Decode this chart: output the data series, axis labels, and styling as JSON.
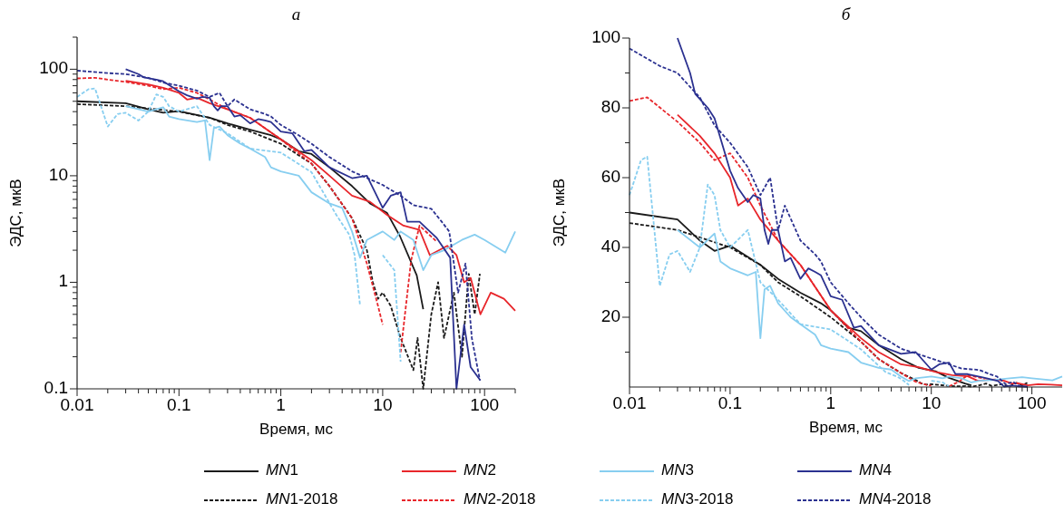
{
  "chart_data": [
    {
      "type": "line",
      "title": "а",
      "xlabel": "Время, мс",
      "ylabel": "ЭДС, мкВ",
      "log": "xy",
      "xlim": [
        0.01,
        200
      ],
      "ylim": [
        0.1,
        200
      ],
      "legend": "bottom",
      "grid": false,
      "xticks": [
        0.01,
        {
          "value": 0.02,
          "label": null
        },
        {
          "value": 0.03,
          "label": null
        },
        {
          "value": 0.04,
          "label": null
        },
        {
          "value": 0.05,
          "label": null
        },
        {
          "value": 0.06,
          "label": null
        },
        {
          "value": 0.07,
          "label": null
        },
        {
          "value": 0.08,
          "label": null
        },
        {
          "value": 0.09,
          "label": null
        },
        0.1,
        {
          "value": 0.2,
          "label": null
        },
        {
          "value": 0.3,
          "label": null
        },
        {
          "value": 0.4,
          "label": null
        },
        {
          "value": 0.5,
          "label": null
        },
        {
          "value": 0.6,
          "label": null
        },
        {
          "value": 0.7,
          "label": null
        },
        {
          "value": 0.8,
          "label": null
        },
        {
          "value": 0.9,
          "label": null
        },
        1,
        {
          "value": 2,
          "label": null
        },
        {
          "value": 3,
          "label": null
        },
        {
          "value": 4,
          "label": null
        },
        {
          "value": 5,
          "label": null
        },
        {
          "value": 6,
          "label": null
        },
        {
          "value": 7,
          "label": null
        },
        {
          "value": 8,
          "label": null
        },
        {
          "value": 9,
          "label": null
        },
        10,
        {
          "value": 20,
          "label": null
        },
        {
          "value": 30,
          "label": null
        },
        {
          "value": 40,
          "label": null
        },
        {
          "value": 50,
          "label": null
        },
        {
          "value": 60,
          "label": null
        },
        {
          "value": 70,
          "label": null
        },
        {
          "value": 80,
          "label": null
        },
        {
          "value": 90,
          "label": null
        },
        100,
        {
          "value": 200,
          "label": null
        }
      ],
      "yticks": [
        0.1,
        {
          "value": 0.2,
          "label": null
        },
        {
          "value": 0.3,
          "label": null
        },
        {
          "value": 0.4,
          "label": null
        },
        {
          "value": 0.5,
          "label": null
        },
        {
          "value": 0.6,
          "label": null
        },
        {
          "value": 0.7,
          "label": null
        },
        {
          "value": 0.8,
          "label": null
        },
        {
          "value": 0.9,
          "label": null
        },
        1,
        {
          "value": 2,
          "label": null
        },
        {
          "value": 3,
          "label": null
        },
        {
          "value": 4,
          "label": null
        },
        {
          "value": 5,
          "label": null
        },
        {
          "value": 6,
          "label": null
        },
        {
          "value": 7,
          "label": null
        },
        {
          "value": 8,
          "label": null
        },
        {
          "value": 9,
          "label": null
        },
        10,
        {
          "value": 20,
          "label": null
        },
        {
          "value": 30,
          "label": null
        },
        {
          "value": 40,
          "label": null
        },
        {
          "value": 50,
          "label": null
        },
        {
          "value": 60,
          "label": null
        },
        {
          "value": 70,
          "label": null
        },
        {
          "value": 80,
          "label": null
        },
        {
          "value": 90,
          "label": null
        },
        100,
        {
          "value": 200,
          "label": null
        }
      ],
      "series": [
        {
          "name": "MN1",
          "color": "#1a1a1a",
          "line_style": "solid",
          "x": [
            0.01,
            0.03,
            0.05,
            0.07,
            0.1,
            0.2,
            0.3,
            0.5,
            0.8,
            1,
            1.5,
            2,
            3,
            5,
            7.5,
            11,
            14.8,
            21.6,
            25
          ],
          "values": [
            50,
            48,
            42,
            39,
            40.5,
            35,
            31,
            27,
            24,
            22,
            17,
            16,
            12,
            8,
            5.5,
            4.5,
            2.7,
            1.16,
            0.56
          ]
        },
        {
          "name": "MN1-2018",
          "color": "#1a1a1a",
          "line_style": "dashed",
          "x": [
            0.01,
            0.03,
            0.1,
            0.2,
            0.3,
            0.5,
            1,
            2,
            3,
            5,
            7,
            8,
            9,
            10,
            12,
            15,
            20,
            22,
            25,
            30,
            35,
            40,
            50,
            60,
            70,
            80,
            90
          ],
          "values": [
            47,
            45,
            40,
            35,
            30,
            26,
            20,
            13,
            8,
            4,
            2,
            1,
            0.7,
            0.8,
            0.6,
            0.3,
            0.15,
            0.3,
            0.1,
            0.5,
            1,
            0.3,
            0.8,
            0.2,
            1.2,
            0.5,
            1.2
          ]
        },
        {
          "name": "MN2",
          "color": "#e8262b",
          "line_style": "solid",
          "x": [
            0.03,
            0.05,
            0.07,
            0.1,
            0.12,
            0.15,
            0.2,
            0.3,
            0.5,
            1,
            2,
            3,
            5,
            7.5,
            11,
            16,
            23,
            29,
            43,
            53,
            63,
            73,
            91,
            115,
            155,
            200
          ],
          "values": [
            78,
            72,
            67,
            60,
            52,
            54,
            48,
            42,
            35,
            22,
            14,
            10,
            6.5,
            5.7,
            4.3,
            3.4,
            3.1,
            1.8,
            2.2,
            1.8,
            1,
            1.1,
            0.5,
            0.8,
            0.7,
            0.54
          ]
        },
        {
          "name": "MN2-2018",
          "color": "#e8262b",
          "line_style": "dashed",
          "x": [
            0.01,
            0.015,
            0.03,
            0.05,
            0.07,
            0.1,
            0.15,
            0.2,
            0.3,
            0.5,
            1,
            2,
            3,
            5,
            7,
            9,
            10,
            12,
            15,
            19,
            23,
            34
          ],
          "values": [
            82,
            83,
            76,
            70,
            65,
            67,
            60,
            52,
            42,
            35,
            22,
            13,
            8,
            4,
            1.5,
            0.6,
            0.4,
            null,
            0.22,
            1.6,
            3.4,
            2.4
          ]
        },
        {
          "name": "MN3",
          "color": "#87cef0",
          "line_style": "solid",
          "x": [
            0.03,
            0.05,
            0.07,
            0.08,
            0.1,
            0.15,
            0.18,
            0.2,
            0.22,
            0.25,
            0.3,
            0.4,
            0.5,
            0.7,
            0.8,
            1,
            1.5,
            2,
            3,
            4,
            5,
            6,
            7,
            10,
            13,
            15,
            20,
            25,
            30,
            40,
            60,
            80,
            100,
            160,
            200
          ],
          "values": [
            45,
            40,
            44,
            36,
            34,
            32,
            33,
            14,
            28,
            29,
            24,
            20,
            18,
            15,
            12,
            11,
            10,
            7,
            5.5,
            5,
            3,
            1.7,
            2.5,
            3,
            2.5,
            3,
            2.5,
            1.3,
            1.8,
            2,
            2.5,
            2.8,
            2.5,
            1.9,
            3
          ]
        },
        {
          "name": "MN3-2018",
          "color": "#87cef0",
          "line_style": "dashed",
          "x": [
            0.01,
            0.013,
            0.015,
            0.02,
            0.025,
            0.03,
            0.04,
            0.05,
            0.06,
            0.07,
            0.08,
            0.1,
            0.15,
            0.2,
            0.3,
            0.5,
            1,
            2,
            3.5,
            4.7,
            5.3,
            6,
            8,
            10,
            13,
            15
          ],
          "values": [
            55,
            65,
            66,
            29,
            38,
            39,
            33,
            40,
            58,
            55,
            45,
            40,
            45,
            30,
            25,
            18,
            16.5,
            10.8,
            4.3,
            2.8,
            1.8,
            0.6,
            null,
            1.8,
            1.3,
            0.18
          ]
        },
        {
          "name": "MN4",
          "color": "#2b3190",
          "line_style": "solid",
          "x": [
            0.03,
            0.04,
            0.045,
            0.06,
            0.07,
            0.1,
            0.12,
            0.15,
            0.17,
            0.2,
            0.22,
            0.24,
            0.26,
            0.3,
            0.35,
            0.4,
            0.5,
            0.6,
            0.7,
            0.8,
            1,
            1.3,
            1.7,
            2,
            3,
            5,
            7,
            10,
            12,
            15,
            17.4,
            23,
            34,
            46,
            53,
            63,
            73,
            91
          ],
          "values": [
            100,
            90,
            84,
            80,
            77,
            62,
            57,
            53,
            55,
            54,
            45,
            41,
            45,
            45,
            36,
            37,
            31,
            34,
            33,
            32,
            26,
            25,
            17,
            17.5,
            12,
            9.5,
            10,
            5,
            6.5,
            7,
            3.7,
            3.7,
            2.6,
            1.7,
            0.1,
            0.4,
            0.16,
            0.12
          ]
        },
        {
          "name": "MN4-2018",
          "color": "#2b3190",
          "line_style": "dashed",
          "x": [
            0.01,
            0.02,
            0.03,
            0.04,
            0.05,
            0.07,
            0.1,
            0.15,
            0.2,
            0.25,
            0.3,
            0.35,
            0.5,
            0.7,
            0.8,
            1,
            1.5,
            2,
            3,
            5,
            10,
            15,
            20,
            30,
            38,
            45,
            55,
            65,
            75,
            90
          ],
          "values": [
            97,
            92,
            90,
            86,
            83,
            75,
            70,
            63,
            55,
            60,
            45,
            52,
            42,
            38,
            36,
            30,
            24,
            20,
            15,
            11,
            8.2,
            6.5,
            5.3,
            4.9,
            3.7,
            3,
            0.8,
            1.5,
            0.3,
            0.12
          ]
        }
      ]
    },
    {
      "type": "line",
      "title": "б",
      "xlabel": "Время, мс",
      "ylabel": "ЭДС, мкВ",
      "log": "x",
      "xlim": [
        0.01,
        200
      ],
      "ylim": [
        0,
        100
      ],
      "grid": false,
      "xticks": [
        0.01,
        {
          "value": 0.02,
          "label": null
        },
        {
          "value": 0.03,
          "label": null
        },
        {
          "value": 0.04,
          "label": null
        },
        {
          "value": 0.05,
          "label": null
        },
        {
          "value": 0.06,
          "label": null
        },
        {
          "value": 0.07,
          "label": null
        },
        {
          "value": 0.08,
          "label": null
        },
        {
          "value": 0.09,
          "label": null
        },
        0.1,
        {
          "value": 0.2,
          "label": null
        },
        {
          "value": 0.3,
          "label": null
        },
        {
          "value": 0.4,
          "label": null
        },
        {
          "value": 0.5,
          "label": null
        },
        {
          "value": 0.6,
          "label": null
        },
        {
          "value": 0.7,
          "label": null
        },
        {
          "value": 0.8,
          "label": null
        },
        {
          "value": 0.9,
          "label": null
        },
        1,
        {
          "value": 2,
          "label": null
        },
        {
          "value": 3,
          "label": null
        },
        {
          "value": 4,
          "label": null
        },
        {
          "value": 5,
          "label": null
        },
        {
          "value": 6,
          "label": null
        },
        {
          "value": 7,
          "label": null
        },
        {
          "value": 8,
          "label": null
        },
        {
          "value": 9,
          "label": null
        },
        10,
        {
          "value": 20,
          "label": null
        },
        {
          "value": 30,
          "label": null
        },
        {
          "value": 40,
          "label": null
        },
        {
          "value": 50,
          "label": null
        },
        {
          "value": 60,
          "label": null
        },
        {
          "value": 70,
          "label": null
        },
        {
          "value": 80,
          "label": null
        },
        {
          "value": 90,
          "label": null
        },
        100
      ],
      "yticks": [
        {
          "value": 10,
          "label": null
        },
        20,
        {
          "value": 30,
          "label": null
        },
        40,
        {
          "value": 50,
          "label": null
        },
        60,
        {
          "value": 70,
          "label": null
        },
        80,
        {
          "value": 90,
          "label": null
        },
        100
      ],
      "series": [
        {
          "color": "#1a1a1a",
          "line_style": "solid",
          "x": [
            0.01,
            0.03,
            0.05,
            0.07,
            0.1,
            0.2,
            0.3,
            0.5,
            0.8,
            1,
            1.5,
            2,
            3,
            5,
            7.5,
            11,
            14.8,
            21.6,
            25
          ],
          "values": [
            50,
            48,
            42,
            39,
            40.5,
            35,
            31,
            27,
            24,
            22,
            17,
            16,
            12,
            8,
            5.5,
            4.5,
            2.7,
            1,
            0.5
          ]
        },
        {
          "color": "#1a1a1a",
          "line_style": "dashed",
          "x": [
            0.01,
            0.03,
            0.1,
            0.2,
            0.3,
            0.5,
            1,
            2,
            3,
            5,
            7,
            8,
            9,
            10,
            12,
            15,
            20,
            22,
            25,
            30,
            35,
            40,
            50,
            60,
            70,
            80,
            90
          ],
          "values": [
            47,
            45,
            40,
            35,
            30,
            26,
            20,
            13,
            8,
            4,
            2,
            1,
            0.7,
            0.8,
            0.6,
            0.3,
            0.2,
            0.3,
            0.1,
            0.5,
            1,
            0.3,
            0.8,
            0.2,
            1.2,
            0.5,
            1.2
          ]
        },
        {
          "color": "#e8262b",
          "line_style": "solid",
          "x": [
            0.03,
            0.05,
            0.07,
            0.1,
            0.12,
            0.15,
            0.2,
            0.3,
            0.5,
            1,
            2,
            3,
            5,
            7.5,
            11,
            16,
            23,
            29,
            43,
            53,
            63,
            73,
            91,
            115,
            155,
            200
          ],
          "values": [
            78,
            72,
            67,
            60,
            52,
            54,
            48,
            42,
            35,
            22,
            14,
            10,
            6.5,
            5.7,
            4.3,
            3.4,
            3.1,
            1.8,
            2.2,
            1.8,
            1,
            1.1,
            0.5,
            0.8,
            0.7,
            0.5
          ]
        },
        {
          "color": "#e8262b",
          "line_style": "dashed",
          "x": [
            0.01,
            0.015,
            0.03,
            0.05,
            0.07,
            0.1,
            0.15,
            0.2,
            0.3,
            0.5,
            1,
            2,
            3,
            5,
            7,
            9,
            10,
            12,
            15,
            19,
            23,
            34
          ],
          "values": [
            82,
            83,
            76,
            70,
            65,
            67,
            60,
            52,
            42,
            35,
            22,
            13,
            8,
            4,
            1.5,
            0.6,
            0.4,
            null,
            0.2,
            1.6,
            3.4,
            2.4
          ]
        },
        {
          "color": "#87cef0",
          "line_style": "solid",
          "x": [
            0.03,
            0.05,
            0.07,
            0.08,
            0.1,
            0.15,
            0.18,
            0.2,
            0.22,
            0.25,
            0.3,
            0.4,
            0.5,
            0.7,
            0.8,
            1,
            1.5,
            2,
            3,
            4,
            5,
            6,
            7,
            10,
            13,
            15,
            20,
            25,
            30,
            40,
            60,
            80,
            100,
            160,
            200
          ],
          "values": [
            45,
            40,
            44,
            36,
            34,
            32,
            33,
            14,
            28,
            29,
            24,
            20,
            18,
            15,
            12,
            11,
            10,
            7,
            5.5,
            5,
            3,
            1.7,
            2.5,
            3,
            2.5,
            3,
            2.5,
            1.3,
            1.8,
            2,
            2.5,
            2.8,
            2.5,
            1.9,
            3
          ]
        },
        {
          "color": "#87cef0",
          "line_style": "dashed",
          "x": [
            0.01,
            0.013,
            0.015,
            0.02,
            0.025,
            0.03,
            0.04,
            0.05,
            0.06,
            0.07,
            0.08,
            0.1,
            0.15,
            0.2,
            0.3,
            0.5,
            1,
            2,
            3.5,
            4.7,
            5.3,
            6,
            8,
            10,
            13,
            15
          ],
          "values": [
            55,
            65,
            66,
            29,
            38,
            39,
            33,
            40,
            58,
            55,
            45,
            40,
            45,
            30,
            25,
            18,
            16.5,
            10.8,
            4.3,
            2.8,
            1.8,
            0.6,
            null,
            1.8,
            1.3,
            0.2
          ]
        },
        {
          "color": "#2b3190",
          "line_style": "solid",
          "x": [
            0.03,
            0.04,
            0.045,
            0.06,
            0.07,
            0.1,
            0.12,
            0.15,
            0.17,
            0.2,
            0.22,
            0.24,
            0.26,
            0.3,
            0.35,
            0.4,
            0.5,
            0.6,
            0.7,
            0.8,
            1,
            1.3,
            1.7,
            2,
            3,
            5,
            7,
            10,
            12,
            15,
            17.4,
            23,
            34,
            46,
            53,
            63,
            73,
            91
          ],
          "values": [
            100,
            90,
            84,
            80,
            77,
            62,
            57,
            53,
            55,
            54,
            45,
            41,
            45,
            45,
            36,
            37,
            31,
            34,
            33,
            32,
            26,
            25,
            17,
            17.5,
            12,
            9.5,
            10,
            5,
            6.5,
            7,
            3.7,
            3.7,
            2.6,
            1.7,
            0.1,
            0.4,
            0.2,
            0.1
          ]
        },
        {
          "color": "#2b3190",
          "line_style": "dashed",
          "x": [
            0.01,
            0.02,
            0.03,
            0.04,
            0.05,
            0.07,
            0.1,
            0.15,
            0.2,
            0.25,
            0.3,
            0.35,
            0.5,
            0.7,
            0.8,
            1,
            1.5,
            2,
            3,
            5,
            10,
            15,
            20,
            30,
            38,
            45,
            55,
            65,
            75,
            90
          ],
          "values": [
            97,
            92,
            90,
            86,
            83,
            75,
            70,
            63,
            55,
            60,
            45,
            52,
            42,
            38,
            36,
            30,
            24,
            20,
            15,
            11,
            8.2,
            6.5,
            5.3,
            4.9,
            3.7,
            3,
            0.8,
            1.5,
            0.3,
            0.1
          ]
        }
      ]
    }
  ]
}
